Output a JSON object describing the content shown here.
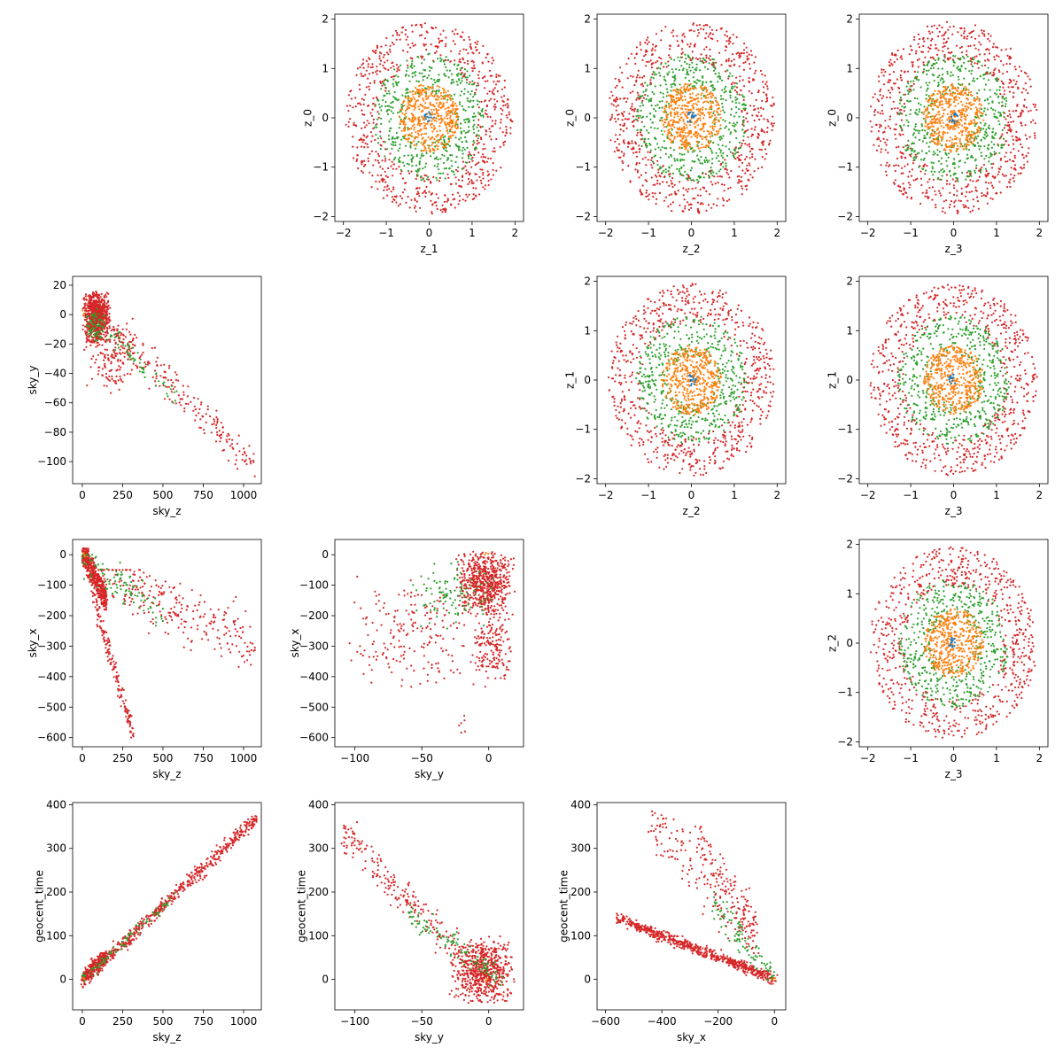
{
  "figure": {
    "series_colors": [
      "#1f77b4",
      "#ff7f0e",
      "#2ca02c",
      "#d62728"
    ]
  },
  "chart_data": [
    {
      "type": "scatter",
      "layout": "ring",
      "ring_offset": 0.0,
      "xlabel": "z_1",
      "ylabel": "z_0",
      "xlim": [
        -2.2,
        2.2
      ],
      "ylim": [
        -2.1,
        2.1
      ],
      "xticks": [
        -2,
        -1,
        0,
        1,
        2
      ],
      "yticks": [
        -2,
        -1,
        0,
        1,
        2
      ],
      "rings": [
        {
          "color": "#d62728",
          "r_min": 1.15,
          "r_max": 1.95,
          "count": 700
        },
        {
          "color": "#2ca02c",
          "r_min": 0.5,
          "r_max": 1.3,
          "count": 500
        },
        {
          "color": "#ff7f0e",
          "r_min": 0.0,
          "r_max": 0.7,
          "count": 450
        },
        {
          "color": "#1f77b4",
          "r_min": 0.0,
          "r_max": 0.12,
          "count": 15
        }
      ]
    },
    {
      "type": "scatter",
      "layout": "ring",
      "ring_offset": 0.3,
      "xlabel": "z_2",
      "ylabel": "z_0",
      "xlim": [
        -2.2,
        2.2
      ],
      "ylim": [
        -2.1,
        2.1
      ],
      "xticks": [
        -2,
        -1,
        0,
        1,
        2
      ],
      "yticks": [
        -2,
        -1,
        0,
        1,
        2
      ],
      "rings": [
        {
          "color": "#d62728",
          "r_min": 1.15,
          "r_max": 1.95,
          "count": 700
        },
        {
          "color": "#2ca02c",
          "r_min": 0.5,
          "r_max": 1.3,
          "count": 500
        },
        {
          "color": "#ff7f0e",
          "r_min": 0.0,
          "r_max": 0.7,
          "count": 450
        },
        {
          "color": "#1f77b4",
          "r_min": 0.0,
          "r_max": 0.12,
          "count": 15
        }
      ]
    },
    {
      "type": "scatter",
      "layout": "ring",
      "ring_offset": 0.6,
      "xlabel": "z_3",
      "ylabel": "z_0",
      "xlim": [
        -2.2,
        2.2
      ],
      "ylim": [
        -2.1,
        2.1
      ],
      "xticks": [
        -2,
        -1,
        0,
        1,
        2
      ],
      "yticks": [
        -2,
        -1,
        0,
        1,
        2
      ],
      "rings": [
        {
          "color": "#d62728",
          "r_min": 1.15,
          "r_max": 1.95,
          "count": 700
        },
        {
          "color": "#2ca02c",
          "r_min": 0.5,
          "r_max": 1.3,
          "count": 500
        },
        {
          "color": "#ff7f0e",
          "r_min": 0.0,
          "r_max": 0.7,
          "count": 450
        },
        {
          "color": "#1f77b4",
          "r_min": 0.0,
          "r_max": 0.12,
          "count": 15
        }
      ]
    },
    {
      "type": "scatter",
      "layout": "ring",
      "ring_offset": 0.9,
      "xlabel": "z_2",
      "ylabel": "z_1",
      "xlim": [
        -2.2,
        2.2
      ],
      "ylim": [
        -2.1,
        2.1
      ],
      "xticks": [
        -2,
        -1,
        0,
        1,
        2
      ],
      "yticks": [
        -2,
        -1,
        0,
        1,
        2
      ],
      "rings": [
        {
          "color": "#d62728",
          "r_min": 1.15,
          "r_max": 1.95,
          "count": 700
        },
        {
          "color": "#2ca02c",
          "r_min": 0.5,
          "r_max": 1.3,
          "count": 500
        },
        {
          "color": "#ff7f0e",
          "r_min": 0.0,
          "r_max": 0.7,
          "count": 450
        },
        {
          "color": "#1f77b4",
          "r_min": 0.0,
          "r_max": 0.12,
          "count": 15
        }
      ]
    },
    {
      "type": "scatter",
      "layout": "ring",
      "ring_offset": 1.2,
      "xlabel": "z_3",
      "ylabel": "z_1",
      "xlim": [
        -2.2,
        2.2
      ],
      "ylim": [
        -2.1,
        2.1
      ],
      "xticks": [
        -2,
        -1,
        0,
        1,
        2
      ],
      "yticks": [
        -2,
        -1,
        0,
        1,
        2
      ],
      "rings": [
        {
          "color": "#d62728",
          "r_min": 1.15,
          "r_max": 1.95,
          "count": 700
        },
        {
          "color": "#2ca02c",
          "r_min": 0.5,
          "r_max": 1.3,
          "count": 500
        },
        {
          "color": "#ff7f0e",
          "r_min": 0.0,
          "r_max": 0.7,
          "count": 450
        },
        {
          "color": "#1f77b4",
          "r_min": 0.0,
          "r_max": 0.12,
          "count": 15
        }
      ]
    },
    {
      "type": "scatter",
      "layout": "ring",
      "ring_offset": 1.5,
      "xlabel": "z_3",
      "ylabel": "z_2",
      "xlim": [
        -2.2,
        2.2
      ],
      "ylim": [
        -2.1,
        2.1
      ],
      "xticks": [
        -2,
        -1,
        0,
        1,
        2
      ],
      "yticks": [
        -2,
        -1,
        0,
        1,
        2
      ],
      "rings": [
        {
          "color": "#d62728",
          "r_min": 1.15,
          "r_max": 1.95,
          "count": 700
        },
        {
          "color": "#2ca02c",
          "r_min": 0.5,
          "r_max": 1.3,
          "count": 500
        },
        {
          "color": "#ff7f0e",
          "r_min": 0.0,
          "r_max": 0.7,
          "count": 450
        },
        {
          "color": "#1f77b4",
          "r_min": 0.0,
          "r_max": 0.12,
          "count": 15
        }
      ]
    },
    {
      "type": "scatter",
      "layout": "cluster",
      "seed": 11,
      "xlabel": "sky_z",
      "ylabel": "sky_y",
      "xlim": [
        -60,
        1110
      ],
      "ylim": [
        -115,
        26
      ],
      "xticks": [
        0,
        250,
        500,
        750,
        1000
      ],
      "yticks": [
        -100,
        -80,
        -60,
        -40,
        -20,
        0,
        20
      ],
      "clusters": [
        {
          "color": "#d62728",
          "count": 750,
          "x": [
            0,
            180
          ],
          "y": [
            -20,
            17
          ]
        },
        {
          "color": "#d62728",
          "count": 160,
          "x": [
            0,
            350
          ],
          "y": [
            -55,
            0
          ]
        },
        {
          "color": "#d62728",
          "count": 200,
          "x": [
            200,
            1070
          ],
          "y": [
            -110,
            -10
          ],
          "trend": [
            [
              200,
              -10
            ],
            [
              1070,
              -105
            ]
          ],
          "spread": 10
        },
        {
          "color": "#2ca02c",
          "count": 70,
          "x": [
            0,
            150
          ],
          "y": [
            -20,
            5
          ]
        },
        {
          "color": "#2ca02c",
          "count": 60,
          "x": [
            100,
            600
          ],
          "y": [
            -60,
            -5
          ],
          "trend": [
            [
              100,
              -5
            ],
            [
              600,
              -58
            ]
          ],
          "spread": 6
        },
        {
          "color": "#ff7f0e",
          "count": 3,
          "x": [
            0,
            20
          ],
          "y": [
            -5,
            5
          ]
        }
      ]
    },
    {
      "type": "scatter",
      "layout": "cluster",
      "seed": 23,
      "xlabel": "sky_z",
      "ylabel": "sky_x",
      "xlim": [
        -60,
        1110
      ],
      "ylim": [
        -630,
        50
      ],
      "xticks": [
        0,
        250,
        500,
        750,
        1000
      ],
      "yticks": [
        -600,
        -500,
        -400,
        -300,
        -200,
        -100,
        0
      ],
      "clusters": [
        {
          "color": "#d62728",
          "count": 500,
          "x": [
            0,
            150
          ],
          "y": [
            -180,
            20
          ],
          "trend": [
            [
              0,
              10
            ],
            [
              150,
              -150
            ]
          ],
          "spread": 40
        },
        {
          "color": "#d62728",
          "count": 160,
          "x": [
            50,
            330
          ],
          "y": [
            -600,
            -120
          ],
          "trend": [
            [
              60,
              -120
            ],
            [
              320,
              -600
            ]
          ],
          "spread": 30
        },
        {
          "color": "#d62728",
          "count": 260,
          "x": [
            100,
            1070
          ],
          "y": [
            -450,
            -50
          ],
          "trend": [
            [
              100,
              -60
            ],
            [
              1070,
              -300
            ]
          ],
          "spread": 80
        },
        {
          "color": "#2ca02c",
          "count": 100,
          "x": [
            0,
            500
          ],
          "y": [
            -280,
            0
          ],
          "trend": [
            [
              0,
              -10
            ],
            [
              500,
              -200
            ]
          ],
          "spread": 50
        },
        {
          "color": "#ff7f0e",
          "count": 3,
          "x": [
            0,
            20
          ],
          "y": [
            -10,
            10
          ]
        }
      ]
    },
    {
      "type": "scatter",
      "layout": "cluster",
      "seed": 37,
      "xlabel": "sky_y",
      "ylabel": "sky_x",
      "xlim": [
        -115,
        26
      ],
      "ylim": [
        -630,
        50
      ],
      "xticks": [
        -100,
        -50,
        0
      ],
      "yticks": [
        -600,
        -500,
        -400,
        -300,
        -200,
        -100,
        0
      ],
      "clusters": [
        {
          "color": "#d62728",
          "count": 600,
          "x": [
            -25,
            20
          ],
          "y": [
            -200,
            20
          ]
        },
        {
          "color": "#d62728",
          "count": 180,
          "x": [
            -15,
            20
          ],
          "y": [
            -450,
            -150
          ]
        },
        {
          "color": "#d62728",
          "count": 190,
          "x": [
            -110,
            -10
          ],
          "y": [
            -450,
            -60
          ]
        },
        {
          "color": "#d62728",
          "count": 6,
          "x": [
            -25,
            -15
          ],
          "y": [
            -600,
            -500
          ]
        },
        {
          "color": "#2ca02c",
          "count": 110,
          "x": [
            -60,
            10
          ],
          "y": [
            -250,
            0
          ]
        },
        {
          "color": "#ff7f0e",
          "count": 3,
          "x": [
            -5,
            5
          ],
          "y": [
            -10,
            10
          ]
        }
      ]
    },
    {
      "type": "scatter",
      "layout": "cluster",
      "seed": 51,
      "xlabel": "z_3",
      "ylabel": "z_2",
      "xlim": [
        -2.2,
        2.2
      ],
      "ylim": [
        -2.1,
        2.1
      ],
      "xticks": [],
      "yticks": [],
      "clusters": []
    },
    {
      "type": "scatter",
      "layout": "cluster",
      "seed": 61,
      "xlabel": "sky_z",
      "ylabel": "geocent_time",
      "xlim": [
        -60,
        1110
      ],
      "ylim": [
        -70,
        405
      ],
      "xticks": [
        0,
        250,
        500,
        750,
        1000
      ],
      "yticks": [
        0,
        100,
        200,
        300,
        400
      ],
      "clusters": [
        {
          "color": "#d62728",
          "count": 300,
          "x": [
            -10,
            150
          ],
          "y": [
            -45,
            60
          ],
          "trend": [
            [
              -5,
              0
            ],
            [
              150,
              55
            ]
          ],
          "spread": 18
        },
        {
          "color": "#d62728",
          "count": 520,
          "x": [
            100,
            1080
          ],
          "y": [
            20,
            385
          ],
          "trend": [
            [
              100,
              30
            ],
            [
              1080,
              370
            ]
          ],
          "spread": 12
        },
        {
          "color": "#2ca02c",
          "count": 80,
          "x": [
            0,
            600
          ],
          "y": [
            -20,
            200
          ],
          "trend": [
            [
              0,
              0
            ],
            [
              600,
              200
            ]
          ],
          "spread": 10
        },
        {
          "color": "#ff7f0e",
          "count": 3,
          "x": [
            0,
            20
          ],
          "y": [
            -5,
            5
          ]
        }
      ]
    },
    {
      "type": "scatter",
      "layout": "cluster",
      "seed": 73,
      "xlabel": "sky_y",
      "ylabel": "geocent_time",
      "xlim": [
        -115,
        26
      ],
      "ylim": [
        -70,
        405
      ],
      "xticks": [
        -100,
        -50,
        0
      ],
      "yticks": [
        0,
        100,
        200,
        300,
        400
      ],
      "clusters": [
        {
          "color": "#d62728",
          "count": 650,
          "x": [
            -30,
            20
          ],
          "y": [
            -60,
            100
          ]
        },
        {
          "color": "#d62728",
          "count": 200,
          "x": [
            -110,
            -20
          ],
          "y": [
            30,
            385
          ],
          "trend": [
            [
              -110,
              340
            ],
            [
              -20,
              60
            ]
          ],
          "spread": 40
        },
        {
          "color": "#2ca02c",
          "count": 110,
          "x": [
            -60,
            10
          ],
          "y": [
            -20,
            170
          ],
          "trend": [
            [
              -60,
              150
            ],
            [
              10,
              0
            ]
          ],
          "spread": 25
        },
        {
          "color": "#ff7f0e",
          "count": 3,
          "x": [
            -5,
            5
          ],
          "y": [
            -5,
            5
          ]
        }
      ]
    },
    {
      "type": "scatter",
      "layout": "cluster",
      "seed": 89,
      "xlabel": "sky_x",
      "ylabel": "geocent_time",
      "xlim": [
        -630,
        40
      ],
      "ylim": [
        -70,
        405
      ],
      "xticks": [
        -600,
        -400,
        -200,
        0
      ],
      "yticks": [
        0,
        100,
        200,
        300,
        400
      ],
      "clusters": [
        {
          "color": "#d62728",
          "count": 650,
          "x": [
            -560,
            10
          ],
          "y": [
            -20,
            160
          ],
          "trend": [
            [
              -560,
              140
            ],
            [
              0,
              0
            ]
          ],
          "spread": 10
        },
        {
          "color": "#d62728",
          "count": 170,
          "x": [
            -450,
            -40
          ],
          "y": [
            60,
            385
          ],
          "trend": [
            [
              -440,
              370
            ],
            [
              -60,
              80
            ]
          ],
          "spread": 60
        },
        {
          "color": "#d62728",
          "count": 100,
          "x": [
            -300,
            -40
          ],
          "y": [
            100,
            350
          ],
          "trend": [
            [
              -280,
              330
            ],
            [
              -60,
              120
            ]
          ],
          "spread": 40
        },
        {
          "color": "#2ca02c",
          "count": 90,
          "x": [
            -250,
            0
          ],
          "y": [
            0,
            200
          ],
          "trend": [
            [
              -220,
              180
            ],
            [
              0,
              0
            ]
          ],
          "spread": 30
        },
        {
          "color": "#ff7f0e",
          "count": 3,
          "x": [
            -10,
            10
          ],
          "y": [
            -5,
            5
          ]
        }
      ]
    }
  ]
}
